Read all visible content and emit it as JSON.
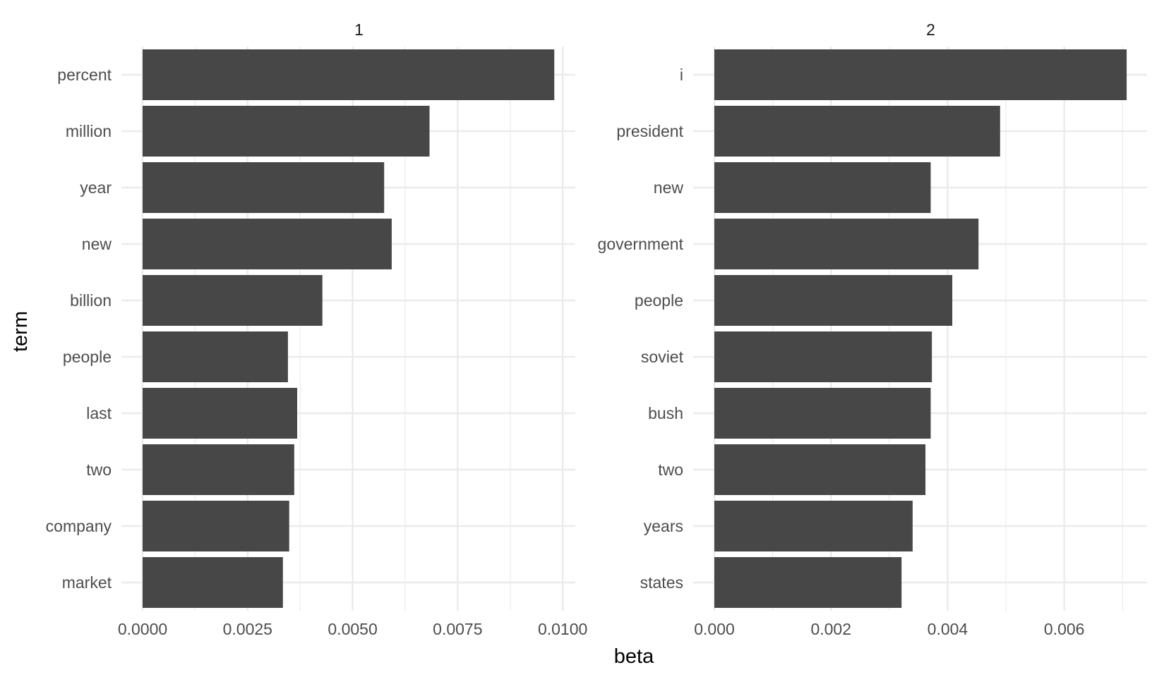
{
  "chart_data": {
    "type": "bar",
    "orientation": "horizontal",
    "facet_layout": "1 row, 2 columns",
    "xlabel": "beta",
    "ylabel": "term",
    "grid": true,
    "panels": [
      {
        "strip_label": "1",
        "categories": [
          "percent",
          "million",
          "year",
          "new",
          "billion",
          "people",
          "last",
          "two",
          "company",
          "market"
        ],
        "values": [
          0.0098,
          0.00683,
          0.00575,
          0.00593,
          0.00428,
          0.00346,
          0.00368,
          0.00361,
          0.00349,
          0.00334
        ],
        "xlim": [
          0,
          0.0103
        ],
        "xticks": [
          0,
          0.0025,
          0.005,
          0.0075,
          0.01
        ],
        "xtick_labels": [
          "0.0000",
          "0.0025",
          "0.0050",
          "0.0075",
          "0.0100"
        ]
      },
      {
        "strip_label": "2",
        "categories": [
          "i",
          "president",
          "new",
          "government",
          "people",
          "soviet",
          "bush",
          "two",
          "years",
          "states"
        ],
        "values": [
          0.00707,
          0.0049,
          0.00371,
          0.00453,
          0.00408,
          0.00373,
          0.00371,
          0.00362,
          0.0034,
          0.00321
        ],
        "xlim": [
          0,
          0.00742
        ],
        "xticks": [
          0,
          0.002,
          0.004,
          0.006
        ],
        "xtick_labels": [
          "0.000",
          "0.002",
          "0.004",
          "0.006"
        ]
      }
    ]
  }
}
